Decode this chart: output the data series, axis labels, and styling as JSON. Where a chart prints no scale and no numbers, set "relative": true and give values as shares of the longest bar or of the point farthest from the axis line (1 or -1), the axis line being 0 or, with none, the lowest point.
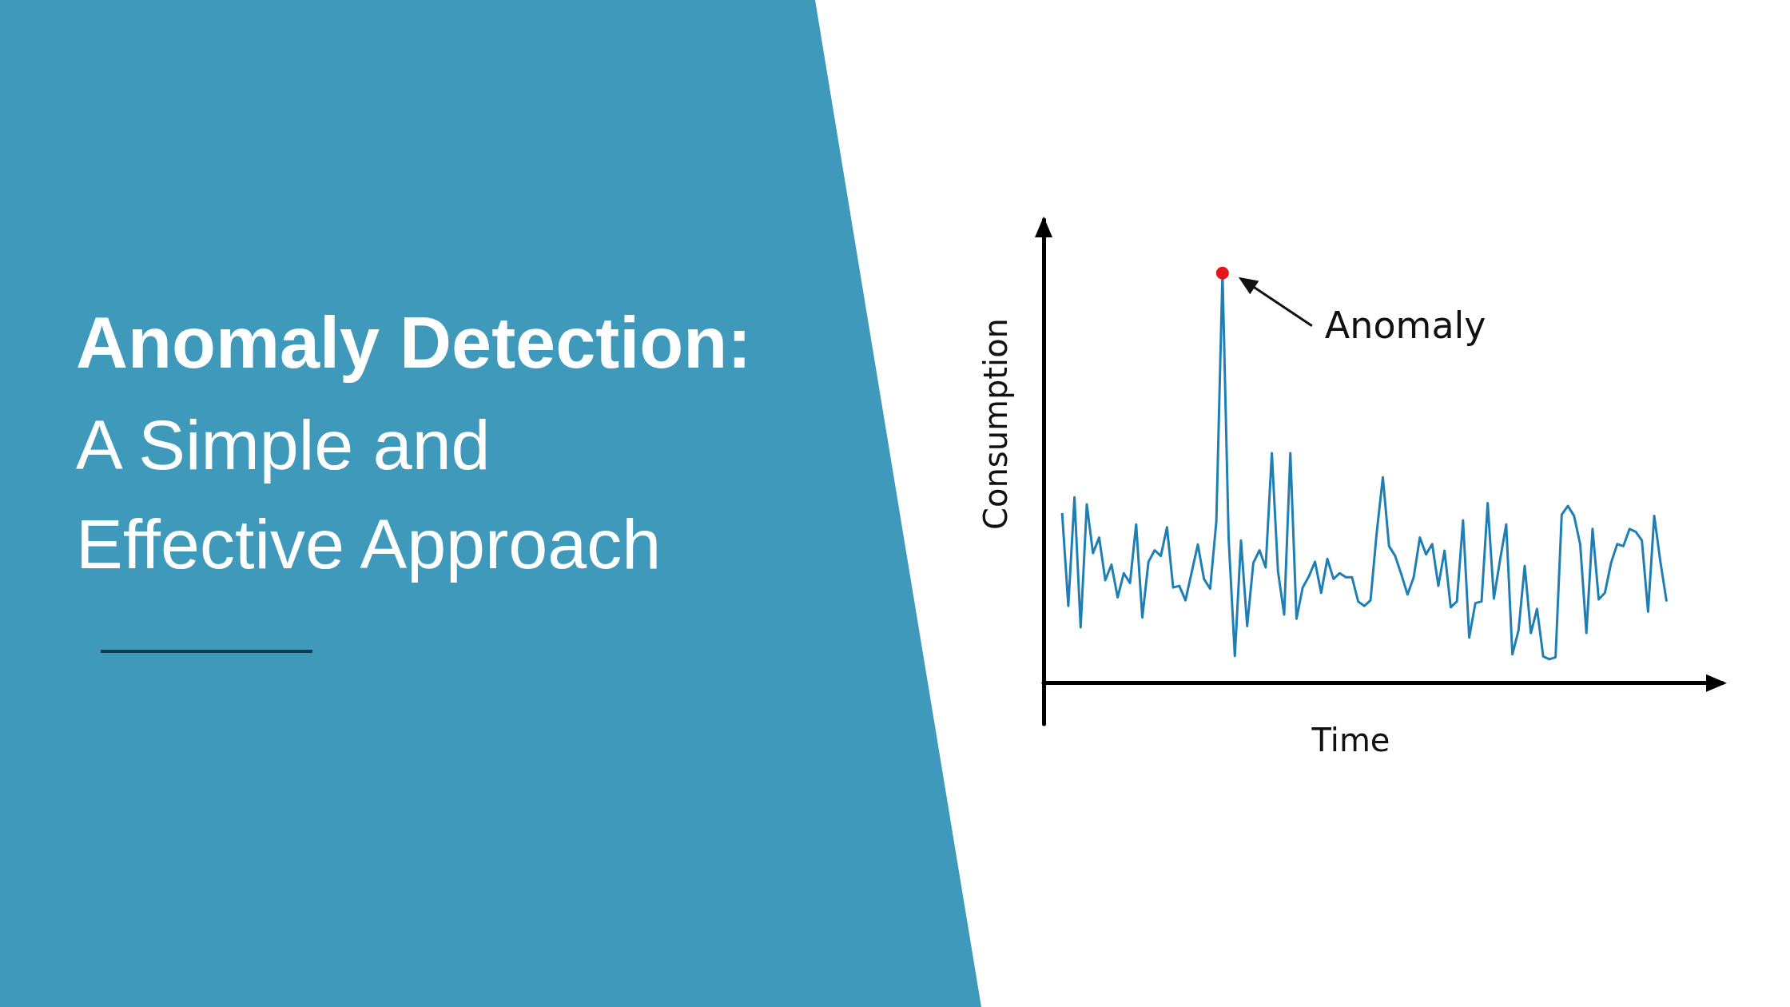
{
  "chart_data": {
    "type": "line",
    "title": "Anomaly Detection:",
    "subtitle": "A Simple and Effective Approach",
    "xlabel": "Time",
    "ylabel": "Consumption",
    "annotations": [
      "Anomaly"
    ],
    "categories": [
      null,
      null,
      null,
      null,
      null,
      null,
      null,
      null,
      null,
      null,
      null,
      null,
      null,
      null,
      null,
      null,
      null,
      null,
      null,
      null,
      null,
      null,
      null,
      null,
      null,
      null,
      null,
      null,
      null,
      null,
      null,
      null,
      null,
      null,
      null,
      null,
      null,
      null,
      null,
      null,
      null,
      null,
      null,
      null,
      null,
      null,
      null,
      null,
      null,
      null,
      null,
      null,
      null,
      null,
      null,
      null,
      null,
      null,
      null,
      null,
      null,
      null,
      null,
      null,
      null,
      null,
      null,
      null,
      null,
      null,
      null,
      null,
      null,
      null,
      null,
      null,
      null,
      null,
      null,
      null,
      null,
      null,
      null,
      null,
      null,
      null,
      null,
      null,
      null,
      null,
      null,
      null,
      null,
      null,
      null,
      null,
      null,
      null,
      null
    ],
    "relative": true,
    "grid": false,
    "line_style": "solid",
    "series": [
      {
        "color": "#1f7fb4",
        "values": [
          0.415,
          0.188,
          0.453,
          0.136,
          0.436,
          0.317,
          0.355,
          0.251,
          0.289,
          0.209,
          0.268,
          0.244,
          0.387,
          0.16,
          0.296,
          0.324,
          0.31,
          0.38,
          0.233,
          0.237,
          0.202,
          0.27,
          0.338,
          0.254,
          0.23,
          0.394,
          1,
          0.352,
          0.066,
          0.348,
          0.139,
          0.293,
          0.324,
          0.282,
          0.561,
          0.272,
          0.167,
          0.561,
          0.157,
          0.233,
          0.26,
          0.296,
          0.22,
          0.303,
          0.254,
          0.268,
          0.258,
          0.258,
          0.199,
          0.188,
          0.202,
          0.366,
          0.502,
          0.334,
          0.31,
          0.265,
          0.216,
          0.258,
          0.355,
          0.314,
          0.339,
          0.237,
          0.323,
          0.185,
          0.199,
          0.397,
          0.111,
          0.195,
          0.199,
          0.439,
          0.206,
          0.3,
          0.387,
          0.07,
          0.129,
          0.286,
          0.122,
          0.181,
          0.065,
          0.058,
          0.063,
          0.411,
          0.432,
          0.408,
          0.338,
          0.122,
          0.376,
          0.204,
          0.22,
          0.293,
          0.339,
          0.334,
          0.376,
          0.369,
          0.348,
          0.174,
          0.408,
          0.296,
          0.199
        ]
      }
    ]
  }
}
